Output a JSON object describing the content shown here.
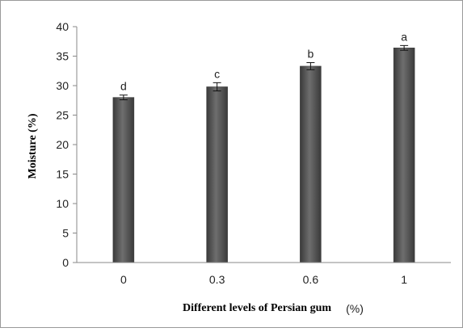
{
  "chart_data": {
    "type": "bar",
    "categories": [
      "0",
      "0.3",
      "0.6",
      "1"
    ],
    "values": [
      28.0,
      29.8,
      33.3,
      36.4
    ],
    "errors": [
      0.4,
      0.7,
      0.6,
      0.4
    ],
    "data_labels": [
      "d",
      "c",
      "b",
      "a"
    ],
    "title": "",
    "xlabel": "Different levels of Persian gum",
    "xlabel_unit": "(%)",
    "ylabel": "Moisture  (%)",
    "ylim": [
      0,
      40
    ],
    "yticks": [
      0,
      5,
      10,
      15,
      20,
      25,
      30,
      35,
      40
    ],
    "grid": false,
    "legend": "none",
    "colors": {
      "bar": "#555555",
      "bar_dark": "#3a3a3a",
      "bar_light": "#6e6e6e",
      "axis": "#888888",
      "border": "#9a9a9a"
    }
  }
}
